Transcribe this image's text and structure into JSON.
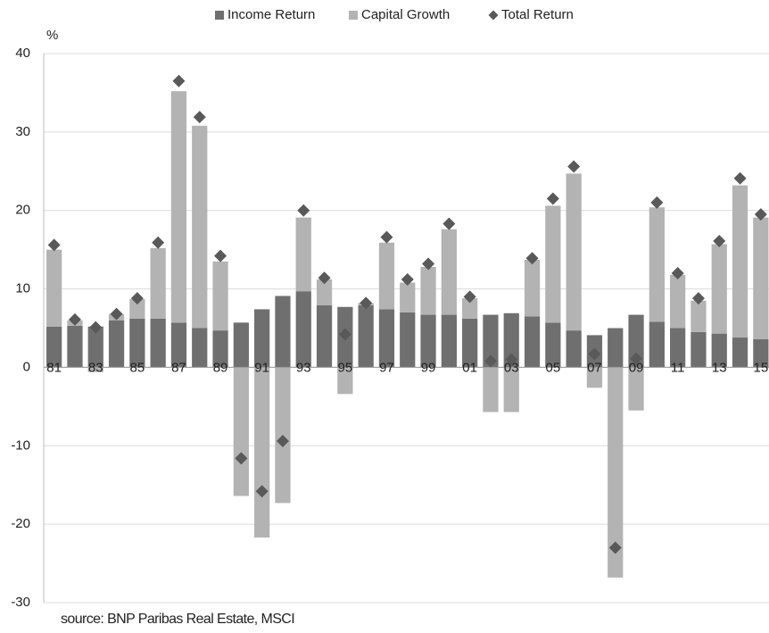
{
  "chart_data": {
    "type": "bar",
    "ylabel": "%",
    "source": "source: BNP Paribas Real Estate, MSCI",
    "legend": "top",
    "grid": true,
    "categories": [
      "81",
      null,
      "83",
      null,
      "85",
      null,
      "87",
      null,
      "89",
      null,
      "91",
      null,
      "93",
      null,
      "95",
      null,
      "97",
      null,
      "99",
      null,
      "01",
      null,
      "03",
      null,
      "05",
      null,
      "07",
      null,
      "09",
      null,
      "11",
      null,
      "13",
      null,
      "15"
    ],
    "ylim": [
      -30,
      40
    ],
    "yticks": [
      -30,
      -20,
      -10,
      0,
      10,
      20,
      30,
      40
    ],
    "series": [
      {
        "name": "Income Return",
        "type": "bar",
        "color": "#6f6f6f",
        "values": [
          5.2,
          5.3,
          5.2,
          6.0,
          6.2,
          6.2,
          5.7,
          5.0,
          4.7,
          5.7,
          7.4,
          9.1,
          9.7,
          7.9,
          7.7,
          7.9,
          7.4,
          7.0,
          6.7,
          6.7,
          6.2,
          6.7,
          6.9,
          6.5,
          5.7,
          4.7,
          4.1,
          5.0,
          6.7,
          5.8,
          5.0,
          4.5,
          4.3,
          3.8,
          3.6
        ]
      },
      {
        "name": "Capital Growth",
        "type": "bar",
        "color": "#b3b3b3",
        "values": [
          9.8,
          0.7,
          -0.6,
          0.8,
          2.5,
          9.0,
          29.5,
          25.8,
          8.8,
          -16.4,
          -21.7,
          -17.3,
          9.4,
          3.3,
          -3.4,
          0.3,
          8.5,
          3.8,
          6.1,
          10.9,
          2.6,
          -5.7,
          -5.7,
          7.2,
          14.9,
          20.0,
          -2.6,
          -26.8,
          -5.5,
          14.6,
          6.8,
          4.0,
          11.4,
          19.4,
          15.5
        ]
      },
      {
        "name": "Total Return",
        "type": "marker",
        "color": "#595959",
        "values": [
          15.6,
          6.1,
          5.1,
          6.8,
          8.8,
          15.9,
          36.5,
          31.9,
          14.2,
          -11.6,
          -15.8,
          -9.4,
          20.0,
          11.4,
          4.2,
          8.2,
          16.6,
          11.2,
          13.2,
          18.3,
          9.0,
          0.8,
          1.0,
          13.9,
          21.5,
          25.6,
          1.7,
          -23.0,
          1.1,
          21.0,
          12.0,
          8.8,
          16.1,
          24.1,
          19.5
        ]
      }
    ]
  }
}
